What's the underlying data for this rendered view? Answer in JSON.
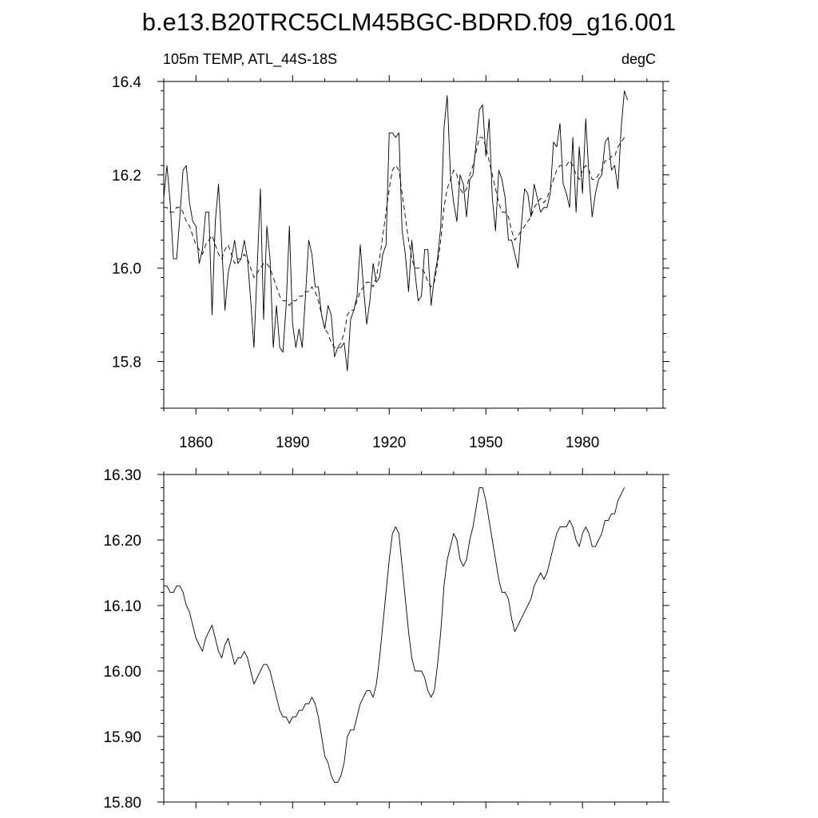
{
  "title": "b.e13.B20TRC5CLM45BGC-BDRD.f09_g16.001",
  "colors": {
    "axis": "#000000",
    "line": "#000000",
    "background": "#ffffff"
  },
  "chart_data": [
    {
      "type": "line",
      "left_string": "105m TEMP, ATL_44S-18S",
      "right_string": "degC",
      "xlim": [
        1850,
        2005
      ],
      "ylim": [
        15.7,
        16.4
      ],
      "x_ticks": [
        1860,
        1890,
        1920,
        1950,
        1980
      ],
      "y_ticks": [
        15.8,
        16.0,
        16.2,
        16.4
      ],
      "y_tick_labels": [
        "15.8",
        "16.0",
        "16.2",
        "16.4"
      ],
      "grid": false,
      "x_start": 1850,
      "x_step": 1,
      "series": [
        {
          "style": "solid",
          "values": [
            16.15,
            16.22,
            16.14,
            16.02,
            16.02,
            16.11,
            16.21,
            16.22,
            16.14,
            16.1,
            16.09,
            16.01,
            16.04,
            16.12,
            16.12,
            15.9,
            16.1,
            16.18,
            16.05,
            15.91,
            15.99,
            16.02,
            16.06,
            16.01,
            16.02,
            16.06,
            16.02,
            15.93,
            15.83,
            16.0,
            16.17,
            15.89,
            16.09,
            16.02,
            15.83,
            15.92,
            15.83,
            15.82,
            15.92,
            16.09,
            15.88,
            15.83,
            15.87,
            15.83,
            15.94,
            16.06,
            16.03,
            15.96,
            15.96,
            15.9,
            15.87,
            15.92,
            15.9,
            15.81,
            15.83,
            15.83,
            15.84,
            15.78,
            15.89,
            15.91,
            15.94,
            16.05,
            15.96,
            15.88,
            15.93,
            16.01,
            15.97,
            15.98,
            16.03,
            16.05,
            16.29,
            16.29,
            16.28,
            16.29,
            16.08,
            16.03,
            15.95,
            16.06,
            15.99,
            15.93,
            15.94,
            16.04,
            16.04,
            15.92,
            15.98,
            16.02,
            16.09,
            16.3,
            16.37,
            16.2,
            16.14,
            16.1,
            16.2,
            16.18,
            16.11,
            16.19,
            16.2,
            16.27,
            16.34,
            16.35,
            16.24,
            16.32,
            16.15,
            16.08,
            16.21,
            16.19,
            16.15,
            16.06,
            16.06,
            16.03,
            16.0,
            16.09,
            16.17,
            16.16,
            16.11,
            16.18,
            16.15,
            16.12,
            16.13,
            16.13,
            16.16,
            16.27,
            16.26,
            16.31,
            16.18,
            16.16,
            16.13,
            16.28,
            16.12,
            16.26,
            16.16,
            16.32,
            16.2,
            16.11,
            16.16,
            16.19,
            16.2,
            16.27,
            16.28,
            16.21,
            16.22,
            16.17,
            16.3,
            16.38,
            16.36
          ]
        },
        {
          "style": "dashed",
          "values": [
            16.13,
            16.13,
            16.12,
            16.12,
            16.13,
            16.13,
            16.12,
            16.1,
            16.09,
            16.07,
            16.05,
            16.04,
            16.03,
            16.05,
            16.06,
            16.07,
            16.05,
            16.03,
            16.02,
            16.04,
            16.05,
            16.03,
            16.01,
            16.02,
            16.02,
            16.03,
            16.02,
            16.0,
            15.98,
            15.99,
            16.0,
            16.01,
            16.01,
            16.0,
            15.98,
            15.96,
            15.94,
            15.93,
            15.93,
            15.92,
            15.93,
            15.93,
            15.94,
            15.94,
            15.95,
            15.95,
            15.96,
            15.95,
            15.93,
            15.9,
            15.87,
            15.86,
            15.84,
            15.83,
            15.83,
            15.84,
            15.86,
            15.9,
            15.91,
            15.91,
            15.93,
            15.95,
            15.96,
            15.97,
            15.97,
            15.96,
            15.98,
            16.02,
            16.07,
            16.12,
            16.17,
            16.21,
            16.22,
            16.21,
            16.16,
            16.11,
            16.06,
            16.02,
            16.0,
            16.0,
            16.0,
            15.99,
            15.97,
            15.96,
            15.97,
            16.01,
            16.06,
            16.13,
            16.17,
            16.19,
            16.21,
            16.2,
            16.17,
            16.16,
            16.17,
            16.2,
            16.22,
            16.25,
            16.28,
            16.28,
            16.26,
            16.23,
            16.2,
            16.17,
            16.14,
            16.12,
            16.12,
            16.11,
            16.08,
            16.06,
            16.07,
            16.08,
            16.09,
            16.1,
            16.11,
            16.13,
            16.14,
            16.15,
            16.14,
            16.15,
            16.17,
            16.19,
            16.21,
            16.22,
            16.22,
            16.22,
            16.23,
            16.22,
            16.2,
            16.19,
            16.21,
            16.22,
            16.21,
            16.19,
            16.19,
            16.2,
            16.21,
            16.23,
            16.23,
            16.24,
            16.24,
            16.26,
            16.27,
            16.28
          ]
        }
      ]
    },
    {
      "type": "line",
      "xlim": [
        1850,
        2005
      ],
      "ylim": [
        15.8,
        16.3
      ],
      "x_ticks": [
        1860,
        1890,
        1920,
        1950,
        1980
      ],
      "y_ticks": [
        15.8,
        15.9,
        16.0,
        16.1,
        16.2,
        16.3
      ],
      "y_tick_labels": [
        "15.80",
        "15.90",
        "16.00",
        "16.10",
        "16.20",
        "16.30"
      ],
      "grid": false,
      "x_start": 1850,
      "x_step": 1,
      "series": [
        {
          "style": "solid",
          "values": [
            16.13,
            16.13,
            16.12,
            16.12,
            16.13,
            16.13,
            16.12,
            16.1,
            16.09,
            16.07,
            16.05,
            16.04,
            16.03,
            16.05,
            16.06,
            16.07,
            16.05,
            16.03,
            16.02,
            16.04,
            16.05,
            16.03,
            16.01,
            16.02,
            16.02,
            16.03,
            16.02,
            16.0,
            15.98,
            15.99,
            16.0,
            16.01,
            16.01,
            16.0,
            15.98,
            15.96,
            15.94,
            15.93,
            15.93,
            15.92,
            15.93,
            15.93,
            15.94,
            15.94,
            15.95,
            15.95,
            15.96,
            15.95,
            15.93,
            15.9,
            15.87,
            15.86,
            15.84,
            15.83,
            15.83,
            15.84,
            15.86,
            15.9,
            15.91,
            15.91,
            15.93,
            15.95,
            15.96,
            15.97,
            15.97,
            15.96,
            15.98,
            16.02,
            16.07,
            16.12,
            16.17,
            16.21,
            16.22,
            16.21,
            16.16,
            16.11,
            16.06,
            16.02,
            16.0,
            16.0,
            16.0,
            15.99,
            15.97,
            15.96,
            15.97,
            16.01,
            16.06,
            16.13,
            16.17,
            16.19,
            16.21,
            16.2,
            16.17,
            16.16,
            16.17,
            16.2,
            16.22,
            16.25,
            16.28,
            16.28,
            16.26,
            16.23,
            16.2,
            16.17,
            16.14,
            16.12,
            16.12,
            16.11,
            16.08,
            16.06,
            16.07,
            16.08,
            16.09,
            16.1,
            16.11,
            16.13,
            16.14,
            16.15,
            16.14,
            16.15,
            16.17,
            16.19,
            16.21,
            16.22,
            16.22,
            16.22,
            16.23,
            16.22,
            16.2,
            16.19,
            16.21,
            16.22,
            16.21,
            16.19,
            16.19,
            16.2,
            16.21,
            16.23,
            16.23,
            16.24,
            16.24,
            16.26,
            16.27,
            16.28
          ]
        }
      ]
    }
  ]
}
